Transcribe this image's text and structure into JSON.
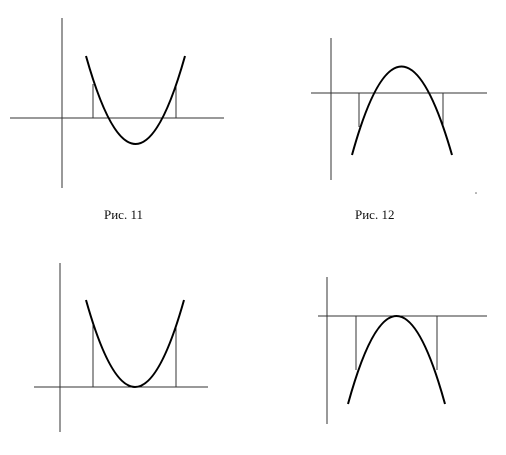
{
  "captions": {
    "fig11": "Рис. 11",
    "fig12": "Рис. 12"
  },
  "colors": {
    "axis": "#333333",
    "curve": "#000000",
    "background": "#ffffff"
  },
  "figures": [
    {
      "id": "fig11",
      "parabola": "opens-up",
      "vertex": "below-x-axis",
      "vertical_segments": 2
    },
    {
      "id": "fig12",
      "parabola": "opens-down",
      "vertex": "above-x-axis",
      "vertical_segments": 2
    },
    {
      "id": "fig13",
      "parabola": "opens-up",
      "vertex": "on-x-axis",
      "vertical_segments": 2
    },
    {
      "id": "fig14",
      "parabola": "opens-down",
      "vertex": "on-x-axis",
      "vertical_segments": 2
    }
  ]
}
